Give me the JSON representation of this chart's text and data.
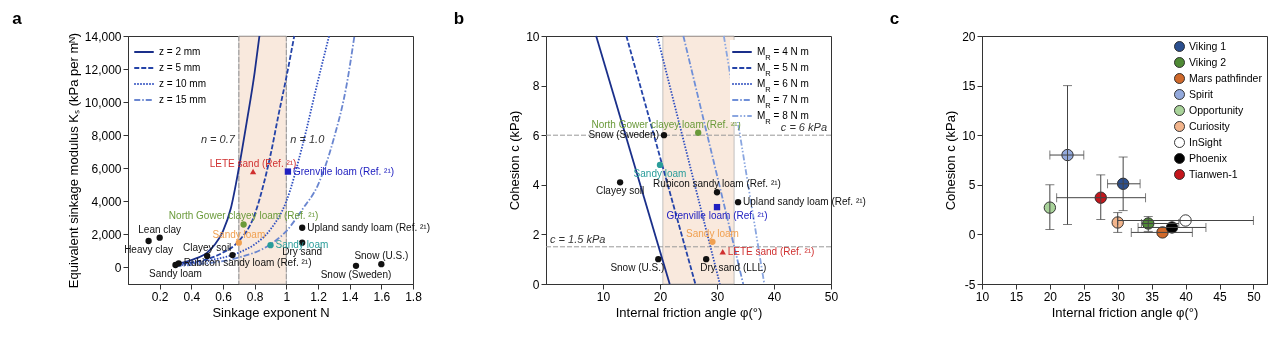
{
  "chart_data": [
    {
      "type": "line",
      "title": "a",
      "xlabel": "Sinkage exponent N",
      "ylabel": "Equivalent sinkage modulus Kₛ (kPa per mᴺ)",
      "xlim": [
        0,
        1.8
      ],
      "ylim": [
        -1000,
        14000
      ],
      "xticks": [
        0.2,
        0.4,
        0.6,
        0.8,
        1,
        1.2,
        1.4,
        1.6,
        1.8
      ],
      "yticks": [
        0,
        {
          "value": 2000,
          "label": "2,000"
        },
        {
          "value": 4000,
          "label": "4,000"
        },
        {
          "value": 6000,
          "label": "6,000"
        },
        {
          "value": 8000,
          "label": "8,000"
        },
        {
          "value": 10000,
          "label": "10,000"
        },
        {
          "value": 12000,
          "label": "12,000"
        },
        {
          "value": 14000,
          "label": "14,000"
        }
      ],
      "grid": false,
      "legend": "top left",
      "series": [
        {
          "name": "z = 2 mm",
          "color": "#1a2f8a",
          "line_style": "solid",
          "x": [
            0.3,
            0.4,
            0.5,
            0.55,
            0.6,
            0.65,
            0.7,
            0.75,
            0.8,
            0.83
          ],
          "values": [
            200,
            450,
            900,
            1400,
            2200,
            3600,
            6000,
            8800,
            11800,
            14000
          ]
        },
        {
          "name": "z = 5 mm",
          "color": "#2443a8",
          "line_style": "dashed",
          "x": [
            0.3,
            0.4,
            0.5,
            0.6,
            0.7,
            0.8,
            0.85,
            0.9,
            0.95,
            1.0,
            1.05
          ],
          "values": [
            150,
            300,
            500,
            900,
            1600,
            3200,
            4800,
            6800,
            9200,
            11500,
            14000
          ]
        },
        {
          "name": "z = 10 mm",
          "color": "#2f4fc0",
          "line_style": "dotted",
          "x": [
            0.3,
            0.5,
            0.7,
            0.8,
            0.9,
            1.0,
            1.1,
            1.2,
            1.27
          ],
          "values": [
            100,
            400,
            900,
            1400,
            2300,
            4000,
            7300,
            11300,
            14000
          ]
        },
        {
          "name": "z = 15 mm",
          "color": "#6a86d0",
          "line_style": "dashdot",
          "x": [
            0.3,
            0.5,
            0.7,
            0.9,
            1.0,
            1.1,
            1.2,
            1.3,
            1.38,
            1.43
          ],
          "values": [
            80,
            250,
            600,
            1400,
            2200,
            3500,
            5000,
            7800,
            11000,
            14000
          ]
        },
        {
          "type": "scatter",
          "marker": "circle",
          "color": "#111111",
          "x": [
            0.13,
            0.2,
            0.3,
            0.32,
            0.5,
            0.66,
            1.1,
            1.1,
            1.44,
            1.6
          ],
          "values": [
            1600,
            1800,
            150,
            250,
            700,
            750,
            2400,
            1500,
            100,
            200
          ]
        },
        {
          "type": "scatter",
          "marker": "circle",
          "colors": [
            "#6a9a3a",
            "#f0a050",
            "#2a9d9a"
          ],
          "x": [
            0.73,
            0.7,
            0.9
          ],
          "values": [
            2600,
            1500,
            1350
          ]
        },
        {
          "type": "scatter",
          "marker": "triangle",
          "color": "#d03030",
          "x": [
            0.79
          ],
          "values": [
            5800
          ]
        },
        {
          "type": "scatter",
          "marker": "square",
          "color": "#2020c0",
          "x": [
            1.01
          ],
          "values": [
            5800
          ]
        }
      ],
      "ref_lines": [
        {
          "axis": "x",
          "value": 0.7,
          "label": "n = 0.7",
          "color": "#999999",
          "line_style": "dashed"
        },
        {
          "axis": "x",
          "value": 1.0,
          "label": "n = 1.0",
          "color": "#999999",
          "line_style": "dashed"
        }
      ],
      "bands": [
        {
          "axis": "x",
          "from": 0.7,
          "to": 1.0,
          "color": "#f8e2d2"
        }
      ],
      "annotations": [
        {
          "text": "Heavy clay",
          "x": 0.13,
          "y": 1600
        },
        {
          "text": "Lean clay",
          "x": 0.2,
          "y": 1800
        },
        {
          "text": "Sandy loam",
          "x": 0.3,
          "y": 150
        },
        {
          "text": "Rubicon sandy loam (Ref. ²¹)",
          "x": 0.32,
          "y": 250
        },
        {
          "text": "Clayey soil",
          "x": 0.5,
          "y": 700
        },
        {
          "text": "Upland sandy loam (Ref. ²¹)",
          "x": 1.1,
          "y": 2400
        },
        {
          "text": "Dry sand",
          "x": 1.1,
          "y": 1500
        },
        {
          "text": "Snow (Sweden)",
          "x": 1.44,
          "y": 100
        },
        {
          "text": "Snow (U.S.)",
          "x": 1.6,
          "y": 200
        },
        {
          "text": "LETE sand (Ref. ²¹)",
          "x": 0.79,
          "y": 5800
        },
        {
          "text": "Grenville loam (Ref. ²¹)",
          "x": 1.01,
          "y": 5800
        },
        {
          "text": "North Gower clayey loam (Ref. ²¹)",
          "x": 0.73,
          "y": 2600
        },
        {
          "text": "Sandy loam",
          "x": 0.7,
          "y": 1500
        },
        {
          "text": "Sandy loam",
          "x": 0.9,
          "y": 1350
        }
      ]
    },
    {
      "type": "line",
      "title": "b",
      "xlabel": "Internal friction angle φ(°)",
      "ylabel": "Cohesion c (kPa)",
      "xlim": [
        0,
        50
      ],
      "ylim": [
        0,
        10
      ],
      "xticks": [
        10,
        20,
        30,
        40,
        50
      ],
      "yticks": [
        0,
        2,
        4,
        6,
        8,
        10
      ],
      "grid": false,
      "legend": "top right",
      "series": [
        {
          "name": "M$_{R}$ = 4 N m",
          "color": "#1a2f8a",
          "line_style": "solid",
          "x": [
            8.8,
            21.7
          ],
          "values": [
            10,
            0
          ]
        },
        {
          "name": "M$_{R}$ = 5 N m",
          "color": "#2443a8",
          "line_style": "dashed",
          "x": [
            14.1,
            26.2
          ],
          "values": [
            10,
            0
          ]
        },
        {
          "name": "M$_{R}$ = 6 N m",
          "color": "#2f4fc0",
          "line_style": "dotted",
          "x": [
            19.5,
            30.5
          ],
          "values": [
            10,
            0
          ]
        },
        {
          "name": "M$_{R}$ = 7 N m",
          "color": "#6f8fd8",
          "line_style": "dashdot",
          "x": [
            24.1,
            34.6
          ],
          "values": [
            10,
            0
          ]
        },
        {
          "name": "M$_{R}$ = 8 N m",
          "color": "#8aa6e0",
          "line_style": "dashdotdot",
          "x": [
            31.2,
            38.3
          ],
          "values": [
            10,
            0
          ]
        },
        {
          "type": "scatter",
          "marker": "circle",
          "color": "#111111",
          "x": [
            20.7,
            13,
            30,
            33.7,
            19.7,
            28.1
          ],
          "values": [
            6,
            4.1,
            3.7,
            3.3,
            1.0,
            1.0
          ]
        },
        {
          "type": "scatter",
          "marker": "circle",
          "colors": [
            "#6a9a3a",
            "#2a9d9a",
            "#f0a050"
          ],
          "x": [
            26.7,
            20,
            29.2
          ],
          "values": [
            6.1,
            4.8,
            1.7
          ]
        },
        {
          "type": "scatter",
          "marker": "triangle",
          "color": "#d03030",
          "x": [
            31
          ],
          "values": [
            1.3
          ]
        },
        {
          "type": "scatter",
          "marker": "square",
          "color": "#2020c0",
          "x": [
            30
          ],
          "values": [
            3.1
          ]
        }
      ],
      "ref_lines": [
        {
          "axis": "y",
          "value": 6,
          "label": "c = 6 kPa",
          "color": "#999999",
          "line_style": "dashed"
        },
        {
          "axis": "y",
          "value": 1.5,
          "label": "c = 1.5 kPa",
          "color": "#999999",
          "line_style": "dashed"
        }
      ],
      "bands": [
        {
          "axis": "x",
          "from": 20.5,
          "to": 33,
          "color": "#f8e2d2"
        }
      ],
      "annotations": [
        {
          "text": "Snow (Sweden)",
          "x": 20.7,
          "y": 6
        },
        {
          "text": "Clayey soil",
          "x": 13,
          "y": 4.1
        },
        {
          "text": "Rubicon sandy loam (Ref. ²¹)",
          "x": 30,
          "y": 3.7
        },
        {
          "text": "Upland sandy loam (Ref. ²¹)",
          "x": 33.7,
          "y": 3.3
        },
        {
          "text": "Snow (U.S.)",
          "x": 19.7,
          "y": 1.0
        },
        {
          "text": "Dry sand (LLL)",
          "x": 28.1,
          "y": 1.0
        },
        {
          "text": "North Gower clayey loam (Ref. ²¹)",
          "x": 26.7,
          "y": 6.1
        },
        {
          "text": "Sandy loam",
          "x": 20,
          "y": 4.8
        },
        {
          "text": "Sandy loam",
          "x": 29.2,
          "y": 1.7
        },
        {
          "text": "LETE sand (Ref. ²¹)",
          "x": 31,
          "y": 1.3
        },
        {
          "text": "Grenville loam (Ref. ²¹)",
          "x": 30,
          "y": 3.1
        }
      ]
    },
    {
      "type": "scatter",
      "title": "c",
      "xlabel": "Internal friction angle φ(°)",
      "ylabel": "Cohesion c (kPa)",
      "xlim": [
        10,
        52
      ],
      "ylim": [
        -5,
        20
      ],
      "xticks": [
        10,
        15,
        20,
        25,
        30,
        35,
        40,
        45,
        50
      ],
      "yticks": [
        -5,
        0,
        5,
        10,
        15,
        20
      ],
      "grid": false,
      "legend": "top right",
      "marker": "circle",
      "series": [
        {
          "name": "Viking 1",
          "color": "#2b4f8f",
          "x": [
            30.8
          ],
          "values": [
            5.1
          ],
          "errors": [
            [
              2.4,
              7.8
            ]
          ],
          "xerrors": [
            [
              28.5,
              33.3
            ]
          ]
        },
        {
          "name": "Viking 2",
          "color": "#4f8a35",
          "x": [
            34.5
          ],
          "values": [
            1.1
          ],
          "errors": [
            [
              0.3,
              1.8
            ]
          ],
          "xerrors": [
            [
              33.5,
              39
            ]
          ]
        },
        {
          "name": "Mars pathfinder",
          "color": "#d0692a",
          "x": [
            36.6
          ],
          "values": [
            0.2
          ],
          "xerrors": [
            [
              32,
              41
            ]
          ]
        },
        {
          "name": "Spirit",
          "color": "#93a9dc",
          "x": [
            22.6
          ],
          "values": [
            8
          ],
          "errors": [
            [
              1,
              15
            ]
          ],
          "xerrors": [
            [
              20,
              25
            ]
          ]
        },
        {
          "name": "Opportunity",
          "color": "#a9d39a",
          "x": [
            20
          ],
          "values": [
            2.7
          ],
          "errors": [
            [
              0.5,
              5
            ]
          ]
        },
        {
          "name": "Curiosity",
          "color": "#f2b48b",
          "x": [
            30
          ],
          "values": [
            1.2
          ],
          "errors": [
            [
              0.2,
              2.2
            ]
          ]
        },
        {
          "name": "InSight",
          "color": "#ffffff",
          "x": [
            40
          ],
          "values": [
            1.4
          ],
          "xerrors": [
            [
              30,
              50
            ]
          ]
        },
        {
          "name": "Phoenix",
          "color": "#000000",
          "x": [
            38
          ],
          "values": [
            0.7
          ],
          "xerrors": [
            [
              33,
              43
            ]
          ]
        },
        {
          "name": "Tianwen-1",
          "color": "#c4161c",
          "x": [
            27.5
          ],
          "values": [
            3.7
          ],
          "errors": [
            [
              1.5,
              6
            ]
          ],
          "xerrors": [
            [
              21,
              34.1
            ]
          ]
        }
      ]
    }
  ]
}
